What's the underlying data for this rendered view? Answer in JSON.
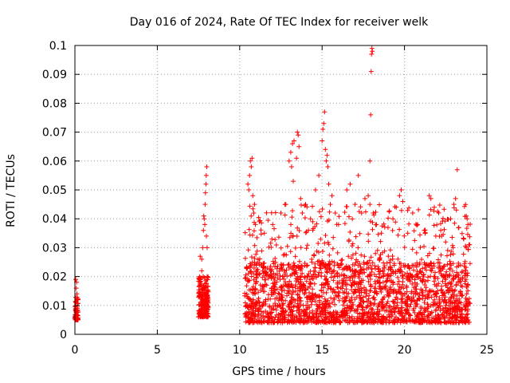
{
  "chart_data": {
    "type": "scatter",
    "title": "Day 016 of 2024, Rate Of TEC Index for receiver welk",
    "xlabel": "GPS time / hours",
    "ylabel": "ROTI / TECUs",
    "xlim": [
      0,
      25
    ],
    "ylim": [
      0,
      0.1
    ],
    "x_ticks": [
      0,
      5,
      10,
      15,
      20,
      25
    ],
    "y_ticks": [
      0,
      0.01,
      0.02,
      0.03,
      0.04,
      0.05,
      0.06,
      0.07,
      0.08,
      0.09,
      0.1
    ],
    "x_tick_labels": [
      "0",
      "5",
      "10",
      "15",
      "20",
      "25"
    ],
    "y_tick_labels": [
      "0",
      "0.01",
      "0.02",
      "0.03",
      "0.04",
      "0.05",
      "0.06",
      "0.07",
      "0.08",
      "0.09",
      "0.1"
    ],
    "grid": true,
    "marker": "plus",
    "color": "#ff0000",
    "segments": [
      {
        "x_range": [
          0.0,
          0.2
        ],
        "y_range": [
          0.005,
          0.013
        ],
        "count": 70
      },
      {
        "x_range": [
          7.5,
          8.1
        ],
        "y_range": [
          0.006,
          0.02
        ],
        "count": 220
      },
      {
        "x_range": [
          10.3,
          24.0
        ],
        "y_range": [
          0.004,
          0.025
        ],
        "count": 1900
      },
      {
        "x_range": [
          10.3,
          24.0
        ],
        "y_range": [
          0.02,
          0.045
        ],
        "count": 380
      }
    ],
    "points": [
      [
        0.05,
        0.019
      ],
      [
        0.1,
        0.018
      ],
      [
        0.08,
        0.016
      ],
      [
        0.12,
        0.014
      ],
      [
        0.15,
        0.012
      ],
      [
        7.6,
        0.027
      ],
      [
        7.7,
        0.026
      ],
      [
        7.75,
        0.03
      ],
      [
        7.8,
        0.036
      ],
      [
        7.85,
        0.04
      ],
      [
        7.9,
        0.045
      ],
      [
        7.92,
        0.049
      ],
      [
        7.95,
        0.052
      ],
      [
        7.97,
        0.055
      ],
      [
        8.0,
        0.058
      ],
      [
        7.82,
        0.041
      ],
      [
        7.88,
        0.038
      ],
      [
        7.98,
        0.034
      ],
      [
        8.02,
        0.03
      ],
      [
        7.7,
        0.022
      ],
      [
        10.5,
        0.052
      ],
      [
        10.6,
        0.055
      ],
      [
        10.7,
        0.058
      ],
      [
        10.75,
        0.061
      ],
      [
        10.55,
        0.05
      ],
      [
        10.8,
        0.048
      ],
      [
        10.9,
        0.045
      ],
      [
        10.65,
        0.06
      ],
      [
        10.85,
        0.042
      ],
      [
        10.95,
        0.038
      ],
      [
        11.5,
        0.035
      ],
      [
        12.0,
        0.038
      ],
      [
        12.5,
        0.042
      ],
      [
        12.8,
        0.045
      ],
      [
        13.0,
        0.06
      ],
      [
        13.1,
        0.063
      ],
      [
        13.2,
        0.066
      ],
      [
        13.3,
        0.067
      ],
      [
        13.15,
        0.058
      ],
      [
        13.25,
        0.053
      ],
      [
        13.5,
        0.07
      ],
      [
        13.55,
        0.069
      ],
      [
        13.6,
        0.065
      ],
      [
        13.45,
        0.061
      ],
      [
        13.7,
        0.047
      ],
      [
        13.8,
        0.042
      ],
      [
        14.0,
        0.045
      ],
      [
        14.3,
        0.04
      ],
      [
        14.6,
        0.05
      ],
      [
        14.8,
        0.055
      ],
      [
        15.0,
        0.067
      ],
      [
        15.05,
        0.071
      ],
      [
        15.1,
        0.073
      ],
      [
        15.15,
        0.077
      ],
      [
        15.2,
        0.064
      ],
      [
        15.25,
        0.06
      ],
      [
        15.3,
        0.062
      ],
      [
        15.35,
        0.058
      ],
      [
        15.4,
        0.052
      ],
      [
        15.5,
        0.045
      ],
      [
        15.6,
        0.048
      ],
      [
        15.8,
        0.042
      ],
      [
        16.0,
        0.038
      ],
      [
        16.5,
        0.05
      ],
      [
        16.7,
        0.052
      ],
      [
        17.0,
        0.045
      ],
      [
        17.2,
        0.055
      ],
      [
        17.4,
        0.042
      ],
      [
        17.6,
        0.047
      ],
      [
        17.8,
        0.048
      ],
      [
        17.9,
        0.06
      ],
      [
        17.95,
        0.076
      ],
      [
        17.98,
        0.091
      ],
      [
        18.0,
        0.097
      ],
      [
        18.02,
        0.099
      ],
      [
        18.05,
        0.098
      ],
      [
        17.9,
        0.045
      ],
      [
        18.1,
        0.042
      ],
      [
        18.3,
        0.038
      ],
      [
        18.6,
        0.035
      ],
      [
        19.0,
        0.037
      ],
      [
        19.3,
        0.04
      ],
      [
        19.5,
        0.044
      ],
      [
        19.7,
        0.048
      ],
      [
        19.8,
        0.05
      ],
      [
        19.9,
        0.046
      ],
      [
        20.2,
        0.035
      ],
      [
        20.5,
        0.042
      ],
      [
        20.8,
        0.038
      ],
      [
        21.2,
        0.036
      ],
      [
        21.5,
        0.048
      ],
      [
        21.6,
        0.047
      ],
      [
        21.9,
        0.034
      ],
      [
        22.2,
        0.036
      ],
      [
        22.5,
        0.032
      ],
      [
        22.8,
        0.04
      ],
      [
        23.0,
        0.045
      ],
      [
        23.1,
        0.047
      ],
      [
        23.2,
        0.057
      ],
      [
        23.15,
        0.043
      ],
      [
        23.3,
        0.037
      ],
      [
        23.6,
        0.033
      ],
      [
        23.8,
        0.04
      ],
      [
        23.85,
        0.038
      ],
      [
        23.9,
        0.031
      ]
    ]
  }
}
